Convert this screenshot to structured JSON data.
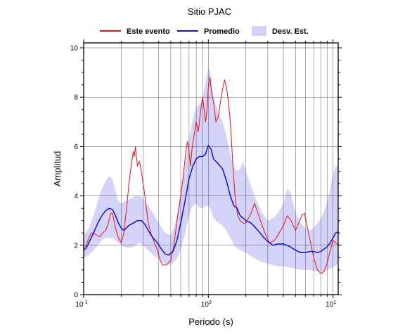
{
  "chart_data": {
    "type": "line",
    "title": "Sitio PJAC",
    "xlabel": "Periodo (s)",
    "ylabel": "Amplitud",
    "x_scale": "log",
    "xlim": [
      0.1,
      11
    ],
    "ylim": [
      0,
      10.2
    ],
    "grid": true,
    "legend_position": "top",
    "x_ticks": [
      {
        "value": 0.1,
        "base": "10",
        "exp": "-1"
      },
      {
        "value": 1,
        "base": "10",
        "exp": "0"
      },
      {
        "value": 10,
        "base": "10",
        "exp": "1"
      }
    ],
    "y_ticks": [
      0,
      2,
      4,
      6,
      8,
      10
    ],
    "legend": [
      {
        "label": "Este evento",
        "color": "#ee1111",
        "kind": "line"
      },
      {
        "label": "Promedio",
        "color": "#1010dd",
        "kind": "line"
      },
      {
        "label": "Desv. Est.",
        "color": "#d4d4fa",
        "kind": "box"
      }
    ],
    "series": [
      {
        "name": "Este evento",
        "color": "#ee1111",
        "points": [
          [
            0.1,
            1.9
          ],
          [
            0.105,
            2.0
          ],
          [
            0.11,
            2.3
          ],
          [
            0.115,
            2.5
          ],
          [
            0.12,
            2.5
          ],
          [
            0.128,
            2.4
          ],
          [
            0.135,
            2.35
          ],
          [
            0.142,
            2.5
          ],
          [
            0.15,
            2.6
          ],
          [
            0.158,
            2.9
          ],
          [
            0.165,
            3.3
          ],
          [
            0.17,
            3.3
          ],
          [
            0.175,
            3.0
          ],
          [
            0.18,
            2.7
          ],
          [
            0.19,
            2.3
          ],
          [
            0.2,
            2.1
          ],
          [
            0.21,
            2.5
          ],
          [
            0.22,
            3.4
          ],
          [
            0.23,
            4.4
          ],
          [
            0.24,
            5.2
          ],
          [
            0.25,
            5.8
          ],
          [
            0.255,
            5.6
          ],
          [
            0.26,
            6.0
          ],
          [
            0.27,
            5.2
          ],
          [
            0.28,
            5.4
          ],
          [
            0.29,
            5.0
          ],
          [
            0.3,
            4.5
          ],
          [
            0.31,
            4.0
          ],
          [
            0.32,
            3.4
          ],
          [
            0.33,
            2.9
          ],
          [
            0.35,
            2.4
          ],
          [
            0.37,
            2.1
          ],
          [
            0.39,
            1.8
          ],
          [
            0.41,
            1.4
          ],
          [
            0.43,
            1.2
          ],
          [
            0.46,
            1.2
          ],
          [
            0.5,
            1.4
          ],
          [
            0.53,
            2.0
          ],
          [
            0.56,
            3.0
          ],
          [
            0.6,
            4.0
          ],
          [
            0.63,
            4.8
          ],
          [
            0.66,
            5.8
          ],
          [
            0.68,
            6.2
          ],
          [
            0.7,
            5.8
          ],
          [
            0.72,
            5.2
          ],
          [
            0.74,
            5.9
          ],
          [
            0.77,
            6.5
          ],
          [
            0.8,
            7.0
          ],
          [
            0.83,
            6.6
          ],
          [
            0.87,
            7.5
          ],
          [
            0.9,
            8.0
          ],
          [
            0.92,
            7.6
          ],
          [
            0.95,
            7.0
          ],
          [
            0.98,
            7.6
          ],
          [
            1.0,
            8.4
          ],
          [
            1.03,
            8.8
          ],
          [
            1.06,
            8.2
          ],
          [
            1.1,
            7.8
          ],
          [
            1.15,
            7.0
          ],
          [
            1.2,
            7.2
          ],
          [
            1.25,
            7.8
          ],
          [
            1.3,
            8.3
          ],
          [
            1.35,
            8.7
          ],
          [
            1.4,
            8.4
          ],
          [
            1.45,
            7.8
          ],
          [
            1.5,
            7.0
          ],
          [
            1.55,
            5.8
          ],
          [
            1.6,
            4.7
          ],
          [
            1.65,
            3.8
          ],
          [
            1.72,
            3.2
          ],
          [
            1.8,
            3.0
          ],
          [
            1.9,
            2.9
          ],
          [
            2.0,
            2.9
          ],
          [
            2.2,
            3.3
          ],
          [
            2.35,
            3.7
          ],
          [
            2.5,
            3.3
          ],
          [
            2.7,
            2.8
          ],
          [
            2.9,
            2.4
          ],
          [
            3.1,
            2.1
          ],
          [
            3.4,
            2.2
          ],
          [
            3.7,
            2.5
          ],
          [
            4.0,
            2.8
          ],
          [
            4.3,
            3.2
          ],
          [
            4.6,
            3.0
          ],
          [
            5.0,
            2.6
          ],
          [
            5.3,
            2.9
          ],
          [
            5.6,
            3.2
          ],
          [
            5.9,
            3.3
          ],
          [
            6.2,
            2.8
          ],
          [
            6.6,
            2.1
          ],
          [
            7.0,
            1.5
          ],
          [
            7.5,
            1.0
          ],
          [
            8.0,
            0.85
          ],
          [
            8.5,
            0.95
          ],
          [
            9.0,
            1.3
          ],
          [
            9.5,
            1.8
          ],
          [
            10.0,
            2.2
          ],
          [
            10.5,
            2.1
          ],
          [
            11.0,
            2.0
          ]
        ]
      },
      {
        "name": "Promedio",
        "color": "#1010dd",
        "points": [
          [
            0.1,
            1.8
          ],
          [
            0.105,
            1.9
          ],
          [
            0.11,
            2.1
          ],
          [
            0.12,
            2.5
          ],
          [
            0.13,
            2.9
          ],
          [
            0.14,
            3.2
          ],
          [
            0.15,
            3.4
          ],
          [
            0.16,
            3.5
          ],
          [
            0.17,
            3.45
          ],
          [
            0.18,
            3.2
          ],
          [
            0.19,
            2.9
          ],
          [
            0.2,
            2.7
          ],
          [
            0.21,
            2.6
          ],
          [
            0.22,
            2.7
          ],
          [
            0.23,
            2.8
          ],
          [
            0.25,
            2.9
          ],
          [
            0.27,
            3.0
          ],
          [
            0.29,
            3.0
          ],
          [
            0.31,
            2.85
          ],
          [
            0.33,
            2.6
          ],
          [
            0.36,
            2.3
          ],
          [
            0.39,
            2.1
          ],
          [
            0.42,
            1.85
          ],
          [
            0.45,
            1.65
          ],
          [
            0.48,
            1.6
          ],
          [
            0.52,
            1.75
          ],
          [
            0.56,
            2.2
          ],
          [
            0.6,
            2.9
          ],
          [
            0.65,
            3.8
          ],
          [
            0.7,
            4.7
          ],
          [
            0.75,
            5.2
          ],
          [
            0.8,
            5.5
          ],
          [
            0.85,
            5.6
          ],
          [
            0.9,
            5.6
          ],
          [
            0.95,
            5.7
          ],
          [
            1.0,
            6.05
          ],
          [
            1.05,
            5.9
          ],
          [
            1.1,
            5.5
          ],
          [
            1.2,
            5.3
          ],
          [
            1.3,
            5.1
          ],
          [
            1.4,
            4.6
          ],
          [
            1.5,
            4.0
          ],
          [
            1.6,
            3.6
          ],
          [
            1.7,
            3.5
          ],
          [
            1.8,
            3.2
          ],
          [
            2.0,
            3.0
          ],
          [
            2.2,
            2.9
          ],
          [
            2.4,
            2.7
          ],
          [
            2.6,
            2.5
          ],
          [
            2.8,
            2.3
          ],
          [
            3.0,
            2.15
          ],
          [
            3.3,
            2.0
          ],
          [
            3.6,
            2.05
          ],
          [
            4.0,
            2.05
          ],
          [
            4.5,
            1.95
          ],
          [
            5.0,
            1.8
          ],
          [
            5.5,
            1.7
          ],
          [
            6.0,
            1.7
          ],
          [
            6.5,
            1.75
          ],
          [
            7.0,
            1.75
          ],
          [
            7.5,
            1.7
          ],
          [
            8.0,
            1.75
          ],
          [
            8.5,
            1.85
          ],
          [
            9.0,
            1.95
          ],
          [
            9.5,
            2.1
          ],
          [
            10.0,
            2.3
          ],
          [
            10.5,
            2.5
          ],
          [
            11.0,
            2.55
          ]
        ]
      }
    ],
    "band": {
      "name": "Desv. Est.",
      "color": "#d4d4fa",
      "upper": [
        [
          0.1,
          2.4
        ],
        [
          0.11,
          2.7
        ],
        [
          0.12,
          3.2
        ],
        [
          0.13,
          3.8
        ],
        [
          0.14,
          4.3
        ],
        [
          0.15,
          4.6
        ],
        [
          0.16,
          4.8
        ],
        [
          0.17,
          4.7
        ],
        [
          0.18,
          4.2
        ],
        [
          0.19,
          3.8
        ],
        [
          0.2,
          3.7
        ],
        [
          0.22,
          3.8
        ],
        [
          0.24,
          3.9
        ],
        [
          0.26,
          4.0
        ],
        [
          0.28,
          4.0
        ],
        [
          0.3,
          3.9
        ],
        [
          0.33,
          3.6
        ],
        [
          0.36,
          3.3
        ],
        [
          0.4,
          2.9
        ],
        [
          0.45,
          2.5
        ],
        [
          0.5,
          2.4
        ],
        [
          0.55,
          3.0
        ],
        [
          0.6,
          4.1
        ],
        [
          0.65,
          5.2
        ],
        [
          0.7,
          6.3
        ],
        [
          0.75,
          7.1
        ],
        [
          0.8,
          7.6
        ],
        [
          0.85,
          7.7
        ],
        [
          0.9,
          8.0
        ],
        [
          0.95,
          8.6
        ],
        [
          1.0,
          9.2
        ],
        [
          1.05,
          8.9
        ],
        [
          1.1,
          8.0
        ],
        [
          1.2,
          7.4
        ],
        [
          1.3,
          7.0
        ],
        [
          1.4,
          6.4
        ],
        [
          1.5,
          5.7
        ],
        [
          1.6,
          5.2
        ],
        [
          1.7,
          5.0
        ],
        [
          1.8,
          5.1
        ],
        [
          1.9,
          5.4
        ],
        [
          2.0,
          5.0
        ],
        [
          2.2,
          4.4
        ],
        [
          2.4,
          3.9
        ],
        [
          2.6,
          3.5
        ],
        [
          2.8,
          3.2
        ],
        [
          3.0,
          3.0
        ],
        [
          3.3,
          3.1
        ],
        [
          3.6,
          3.3
        ],
        [
          4.0,
          3.7
        ],
        [
          4.3,
          4.3
        ],
        [
          4.6,
          4.1
        ],
        [
          5.0,
          3.3
        ],
        [
          5.5,
          2.9
        ],
        [
          6.0,
          2.7
        ],
        [
          6.5,
          2.6
        ],
        [
          7.0,
          2.7
        ],
        [
          7.5,
          2.9
        ],
        [
          8.0,
          3.1
        ],
        [
          8.5,
          3.4
        ],
        [
          9.0,
          3.8
        ],
        [
          9.5,
          4.3
        ],
        [
          10.0,
          4.9
        ],
        [
          10.5,
          5.2
        ],
        [
          11.0,
          5.2
        ]
      ],
      "lower": [
        [
          0.1,
          1.5
        ],
        [
          0.11,
          1.6
        ],
        [
          0.12,
          1.8
        ],
        [
          0.13,
          2.0
        ],
        [
          0.14,
          2.2
        ],
        [
          0.15,
          2.3
        ],
        [
          0.16,
          2.3
        ],
        [
          0.17,
          2.3
        ],
        [
          0.18,
          2.2
        ],
        [
          0.2,
          2.0
        ],
        [
          0.22,
          1.9
        ],
        [
          0.24,
          1.9
        ],
        [
          0.26,
          2.0
        ],
        [
          0.28,
          2.1
        ],
        [
          0.3,
          2.0
        ],
        [
          0.33,
          1.8
        ],
        [
          0.36,
          1.6
        ],
        [
          0.4,
          1.45
        ],
        [
          0.45,
          1.25
        ],
        [
          0.5,
          1.2
        ],
        [
          0.55,
          1.4
        ],
        [
          0.6,
          1.8
        ],
        [
          0.65,
          2.5
        ],
        [
          0.7,
          3.2
        ],
        [
          0.75,
          3.6
        ],
        [
          0.8,
          3.7
        ],
        [
          0.85,
          3.5
        ],
        [
          0.9,
          3.5
        ],
        [
          0.95,
          3.6
        ],
        [
          1.0,
          3.6
        ],
        [
          1.05,
          3.4
        ],
        [
          1.1,
          3.1
        ],
        [
          1.2,
          2.9
        ],
        [
          1.3,
          2.8
        ],
        [
          1.4,
          2.6
        ],
        [
          1.5,
          2.3
        ],
        [
          1.6,
          2.0
        ],
        [
          1.7,
          1.9
        ],
        [
          1.8,
          1.8
        ],
        [
          2.0,
          1.7
        ],
        [
          2.2,
          1.55
        ],
        [
          2.5,
          1.4
        ],
        [
          2.8,
          1.3
        ],
        [
          3.0,
          1.25
        ],
        [
          3.3,
          1.2
        ],
        [
          3.6,
          1.15
        ],
        [
          4.0,
          1.15
        ],
        [
          4.5,
          1.1
        ],
        [
          5.0,
          1.05
        ],
        [
          5.5,
          1.0
        ],
        [
          6.0,
          1.0
        ],
        [
          6.5,
          1.0
        ],
        [
          7.0,
          0.95
        ],
        [
          8.0,
          0.95
        ],
        [
          9.0,
          1.0
        ],
        [
          10.0,
          1.1
        ],
        [
          11.0,
          1.25
        ]
      ]
    }
  }
}
